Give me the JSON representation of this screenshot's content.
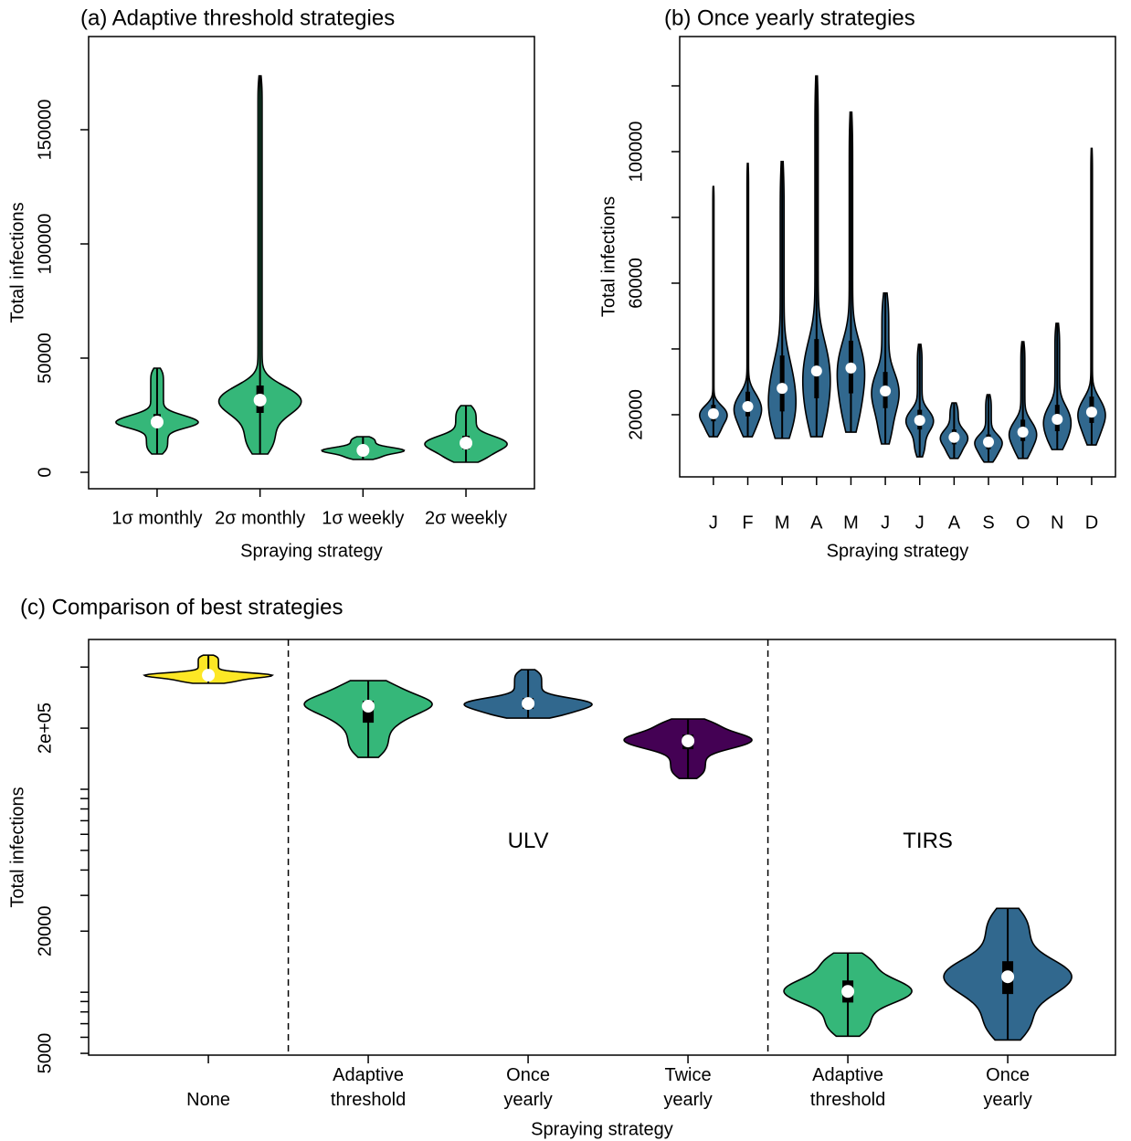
{
  "chart_data": [
    {
      "type": "violin",
      "title": "(a) Adaptive threshold strategies",
      "xlabel": "Spraying strategy",
      "ylabel": "Total infections",
      "categories": [
        "1σ monthly",
        "2σ monthly",
        "1σ weekly",
        "2σ weekly"
      ],
      "color": "#35b779",
      "min": [
        8000,
        8000,
        5600,
        4400
      ],
      "q1": [
        20000,
        26000,
        8500,
        10000
      ],
      "median": [
        22000,
        31600,
        9600,
        12800
      ],
      "q3": [
        25500,
        38000,
        11000,
        16000
      ],
      "max": [
        45600,
        173600,
        15600,
        29200
      ],
      "ylim": [
        -7200,
        190800
      ],
      "yticks": [
        0,
        50000,
        100000,
        150000
      ]
    },
    {
      "type": "violin",
      "title": "(b) Once yearly strategies",
      "xlabel": "Spraying strategy",
      "ylabel": "Total infections",
      "categories": [
        "J",
        "F",
        "M",
        "A",
        "M",
        "J",
        "J",
        "A",
        "S",
        "O",
        "N",
        "D"
      ],
      "color": "#31688e",
      "min": [
        13300,
        13300,
        12800,
        13300,
        14700,
        11100,
        7200,
        6700,
        5600,
        6700,
        9400,
        10800
      ],
      "q1": [
        18000,
        19500,
        21000,
        25000,
        26500,
        22000,
        15500,
        11000,
        9500,
        12000,
        15000,
        17500
      ],
      "median": [
        20300,
        22500,
        28000,
        33300,
        34200,
        27200,
        18300,
        13100,
        11700,
        14700,
        18600,
        20800
      ],
      "q3": [
        23000,
        27000,
        38000,
        43000,
        42500,
        33000,
        21500,
        15500,
        14000,
        18500,
        23000,
        25500
      ],
      "max": [
        89400,
        96400,
        97000,
        123000,
        112000,
        57000,
        41400,
        23600,
        26100,
        42200,
        47800,
        101000
      ],
      "ylim": [
        1100,
        135000
      ],
      "yticks": [
        20000,
        {
          "value": 40000,
          "label": null
        },
        60000,
        {
          "value": 80000,
          "label": null
        },
        100000,
        {
          "value": 120000,
          "label": null
        }
      ]
    },
    {
      "type": "violin",
      "title": "(c) Comparison of best strategies",
      "xlabel": "Spraying strategy",
      "ylabel": "Total infections",
      "categories": [
        "None",
        "Adaptive threshold",
        "Once yearly",
        "Twice yearly",
        "Adaptive threshold",
        "Once yearly"
      ],
      "colors": [
        "#fde725",
        "#35b779",
        "#31688e",
        "#440154",
        "#35b779",
        "#31688e"
      ],
      "annotations": [
        "ULV",
        "TIRS"
      ],
      "log_y": true,
      "min": [
        332600,
        143600,
        224200,
        113000,
        6070,
        5820
      ],
      "q1": [
        355000,
        212800,
        248600,
        157600,
        8900,
        9800
      ],
      "median": [
        364800,
        256600,
        264600,
        173000,
        10090,
        11920
      ],
      "q3": [
        375000,
        273000,
        281600,
        186000,
        11430,
        14220
      ],
      "max": [
        458000,
        342800,
        388400,
        221800,
        15600,
        25900
      ],
      "ylim": [
        4900,
        547000
      ],
      "yticks": [
        5000,
        {
          "value": 6000,
          "label": null
        },
        {
          "value": 7000,
          "label": null
        },
        {
          "value": 8000,
          "label": null
        },
        {
          "value": 9000,
          "label": null
        },
        {
          "value": 10000,
          "label": null
        },
        20000,
        {
          "value": 30000,
          "label": null
        },
        {
          "value": 40000,
          "label": null
        },
        {
          "value": 50000,
          "label": null
        },
        {
          "value": 60000,
          "label": null
        },
        {
          "value": 70000,
          "label": null
        },
        {
          "value": 80000,
          "label": null
        },
        {
          "value": 90000,
          "label": null
        },
        {
          "value": 100000,
          "label": null
        },
        {
          "value": 200000,
          "label": "2e+05"
        },
        {
          "value": 400000,
          "label": null
        }
      ]
    }
  ]
}
